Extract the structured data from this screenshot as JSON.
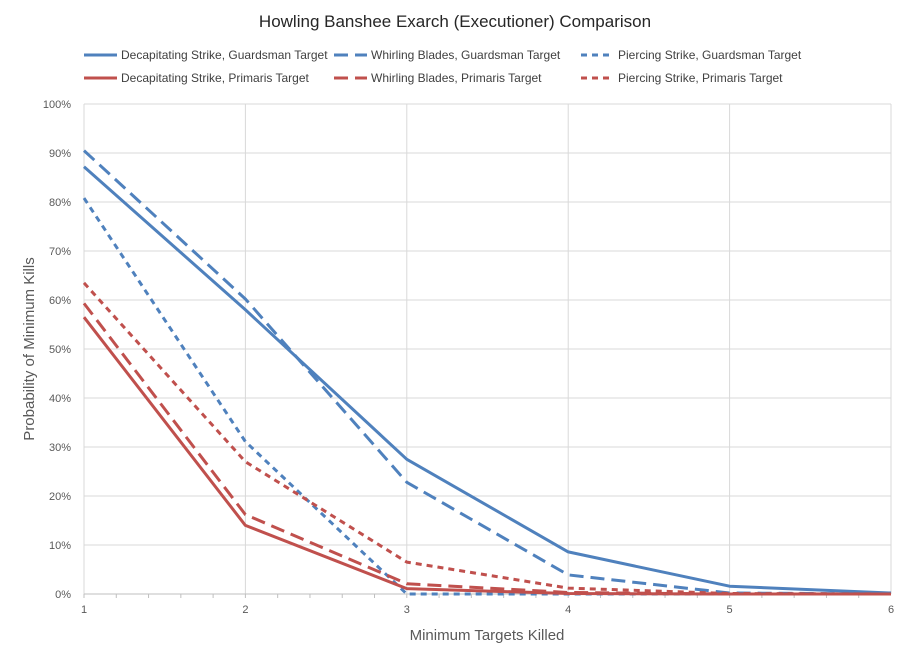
{
  "chart_data": {
    "type": "line",
    "title": "Howling Banshee Exarch (Executioner) Comparison",
    "xlabel": "Minimum Targets Killed",
    "ylabel": "Probability of Minimum Kills",
    "x": [
      1,
      2,
      3,
      4,
      5,
      6
    ],
    "xlim": [
      1,
      6
    ],
    "ylim": [
      0,
      100
    ],
    "y_ticks": [
      "0%",
      "10%",
      "20%",
      "30%",
      "40%",
      "50%",
      "60%",
      "70%",
      "80%",
      "90%",
      "100%"
    ],
    "x_ticks": [
      "1",
      "2",
      "3",
      "4",
      "5",
      "6"
    ],
    "grid": true,
    "legend_position": "top",
    "series": [
      {
        "name": "Decapitating Strike, Guardsman Target",
        "color": "#4f81bd",
        "dash": "solid",
        "values": [
          87.2,
          58.0,
          27.5,
          8.6,
          1.6,
          0.2
        ]
      },
      {
        "name": "Whirling Blades, Guardsman Target",
        "color": "#4f81bd",
        "dash": "long-dash",
        "values": [
          90.5,
          60.2,
          22.8,
          3.9,
          0.2,
          0.0
        ]
      },
      {
        "name": "Piercing Strike, Guardsman Target",
        "color": "#4f81bd",
        "dash": "short-dash",
        "values": [
          80.8,
          31.1,
          0.0,
          0.0,
          0.0,
          0.0
        ]
      },
      {
        "name": "Decapitating Strike, Primaris Target",
        "color": "#c0504d",
        "dash": "solid",
        "values": [
          56.5,
          14.0,
          1.1,
          0.1,
          0.0,
          0.0
        ]
      },
      {
        "name": "Whirling Blades, Primaris Target",
        "color": "#c0504d",
        "dash": "long-dash",
        "values": [
          59.3,
          16.2,
          2.1,
          0.3,
          0.0,
          0.0
        ]
      },
      {
        "name": "Piercing Strike, Primaris Target",
        "color": "#c0504d",
        "dash": "short-dash",
        "values": [
          63.5,
          27.0,
          6.5,
          1.2,
          0.1,
          0.0
        ]
      }
    ]
  }
}
